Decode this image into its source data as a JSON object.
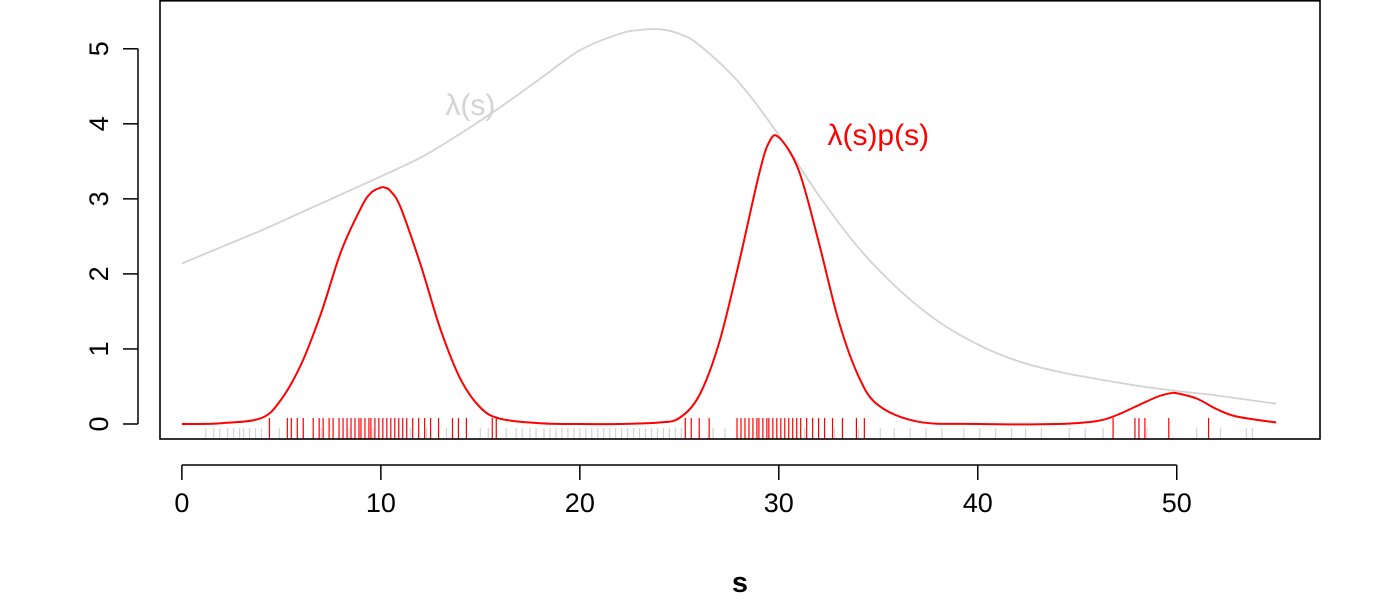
{
  "chart_data": {
    "type": "line",
    "title": "",
    "xlabel": "s",
    "ylabel": "",
    "xlim": [
      -1.1,
      57.2
    ],
    "ylim": [
      -0.2,
      5.65
    ],
    "x_ticks": [
      0,
      10,
      20,
      30,
      40,
      50
    ],
    "y_ticks": [
      0,
      1,
      2,
      3,
      4,
      5
    ],
    "x_tick_labels": [
      "0",
      "10",
      "20",
      "30",
      "40",
      "50"
    ],
    "y_tick_labels": [
      "0",
      "1",
      "2",
      "3",
      "4",
      "5"
    ],
    "grid": false,
    "legend": "none",
    "series": [
      {
        "name": "λ(s)",
        "color": "#d3d3d3",
        "x": [
          0,
          2,
          4,
          6,
          8,
          10,
          12,
          14,
          16,
          18,
          20,
          22,
          23,
          24,
          25,
          26,
          28,
          30,
          32,
          34,
          36,
          38,
          40,
          42,
          44,
          46,
          48,
          50,
          52,
          55
        ],
        "y": [
          2.14,
          2.36,
          2.58,
          2.82,
          3.06,
          3.3,
          3.55,
          3.87,
          4.22,
          4.6,
          4.98,
          5.2,
          5.25,
          5.26,
          5.2,
          5.05,
          4.55,
          3.85,
          3.05,
          2.35,
          1.8,
          1.37,
          1.06,
          0.84,
          0.7,
          0.6,
          0.51,
          0.44,
          0.38,
          0.27
        ]
      },
      {
        "name": "λ(s)p(s)",
        "color": "#ff0000",
        "x": [
          0,
          2,
          4,
          5,
          6,
          7,
          8,
          9,
          9.5,
          10,
          10.2,
          10.5,
          11,
          12,
          13,
          14,
          15,
          16,
          18,
          20,
          22,
          24,
          25,
          26,
          27,
          28,
          29,
          29.5,
          30,
          31,
          32,
          33,
          34,
          35,
          37,
          40,
          44,
          46,
          47,
          48,
          49,
          49.7,
          50,
          51,
          52,
          53,
          55
        ],
        "y": [
          0.0,
          0.01,
          0.08,
          0.33,
          0.8,
          1.48,
          2.3,
          2.88,
          3.08,
          3.15,
          3.15,
          3.1,
          2.88,
          2.12,
          1.26,
          0.6,
          0.22,
          0.07,
          0.01,
          0.0,
          0.0,
          0.02,
          0.08,
          0.38,
          1.08,
          2.15,
          3.32,
          3.75,
          3.82,
          3.38,
          2.43,
          1.38,
          0.64,
          0.25,
          0.03,
          0.0,
          0.0,
          0.04,
          0.12,
          0.24,
          0.36,
          0.41,
          0.41,
          0.34,
          0.2,
          0.1,
          0.02
        ]
      }
    ],
    "annotations": [
      {
        "text": "λ(s)",
        "x": 14.5,
        "y": 4.25,
        "color": "#d3d3d3"
      },
      {
        "text": "λ(s)p(s)",
        "x": 35,
        "y": 3.85,
        "color": "#ff0000"
      }
    ],
    "rug": [
      {
        "color": "#d3d3d3",
        "values": [
          1.2,
          1.6,
          1.9,
          2.3,
          2.6,
          2.9,
          3.1,
          3.4,
          3.7,
          4.0,
          4.9,
          6.1,
          7.0,
          8.4,
          9.6,
          10.9,
          11.5,
          12.3,
          12.9,
          13.3,
          15.0,
          15.4,
          16.3,
          16.8,
          17.1,
          17.5,
          17.8,
          18.2,
          18.5,
          18.8,
          19.1,
          19.4,
          19.7,
          20.0,
          20.3,
          20.6,
          20.9,
          21.2,
          21.5,
          21.8,
          22.1,
          22.4,
          22.7,
          23.0,
          23.3,
          23.6,
          23.9,
          24.2,
          24.5,
          24.8,
          25.1,
          26.0,
          26.7,
          27.3,
          31.3,
          32.8,
          34.0,
          35.1,
          35.8,
          36.6,
          37.4,
          38.2,
          39.3,
          40.1,
          40.9,
          41.7,
          42.4,
          43.2,
          44.6,
          45.4,
          46.3,
          48.5,
          51.0,
          52.2,
          53.5,
          53.8
        ]
      },
      {
        "color": "#ff0000",
        "values": [
          4.4,
          5.3,
          5.5,
          5.8,
          6.1,
          6.6,
          6.9,
          7.1,
          7.4,
          7.6,
          7.9,
          8.1,
          8.3,
          8.5,
          8.7,
          8.9,
          9.0,
          9.2,
          9.4,
          9.5,
          9.7,
          9.9,
          10.1,
          10.3,
          10.5,
          10.7,
          10.9,
          11.1,
          11.3,
          11.6,
          11.9,
          12.2,
          12.5,
          12.9,
          13.6,
          13.9,
          14.3,
          15.6,
          15.8,
          25.3,
          25.6,
          26.0,
          26.5,
          27.9,
          28.1,
          28.3,
          28.5,
          28.7,
          28.9,
          29.0,
          29.2,
          29.4,
          29.5,
          29.7,
          29.9,
          30.1,
          30.3,
          30.5,
          30.7,
          30.9,
          31.1,
          31.4,
          31.7,
          32.0,
          32.3,
          32.7,
          33.2,
          33.9,
          34.3,
          46.8,
          47.9,
          48.1,
          48.4,
          49.6,
          51.6
        ]
      }
    ]
  }
}
